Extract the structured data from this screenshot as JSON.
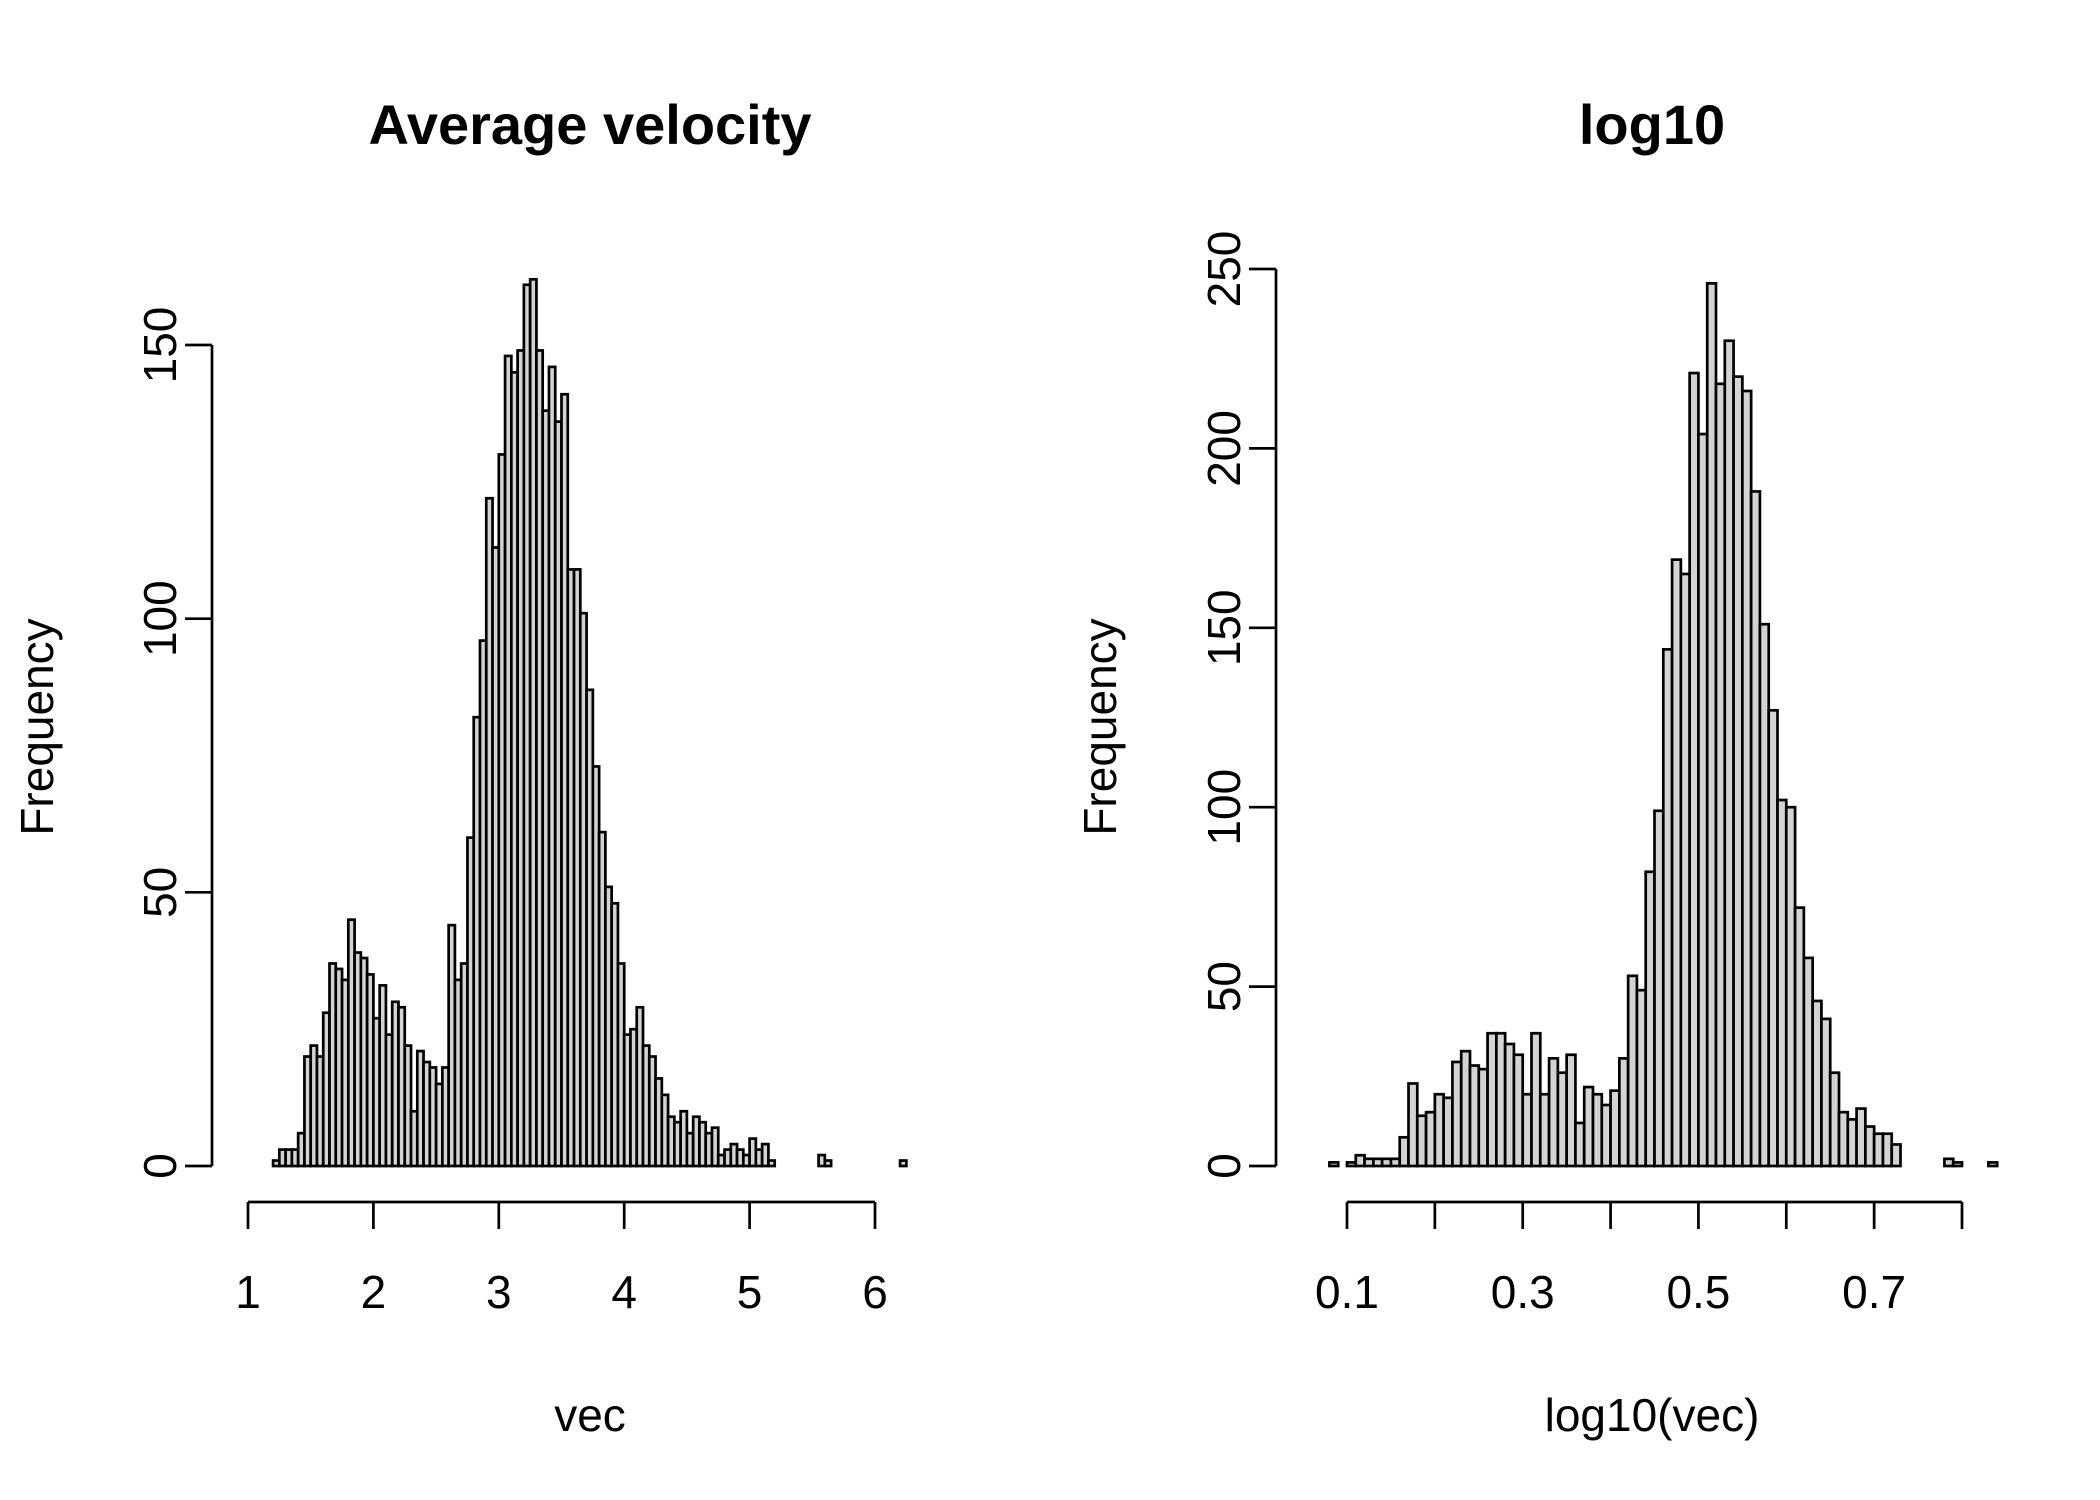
{
  "chart_data": [
    {
      "type": "bar",
      "title": "Average velocity",
      "xlabel": "vec",
      "ylabel": "Frequency",
      "xlim": [
        1,
        6
      ],
      "ylim": [
        0,
        150
      ],
      "x_ticks": [
        1,
        2,
        3,
        4,
        5,
        6
      ],
      "x_tick_labels": [
        "1",
        "2",
        "3",
        "4",
        "5",
        "6"
      ],
      "y_ticks": [
        0,
        50,
        100,
        150
      ],
      "y_tick_labels": [
        "0",
        "50",
        "100",
        "150"
      ],
      "bin_start": 1.2,
      "bin_width": 0.05,
      "values": [
        1,
        3,
        3,
        3,
        6,
        20,
        22,
        20,
        28,
        37,
        36,
        34,
        45,
        39,
        38,
        35,
        27,
        33,
        24,
        30,
        29,
        22,
        10,
        21,
        19,
        18,
        15,
        18,
        44,
        34,
        37,
        60,
        82,
        96,
        122,
        113,
        130,
        148,
        145,
        149,
        161,
        162,
        149,
        138,
        146,
        136,
        141,
        109,
        109,
        101,
        87,
        73,
        61,
        51,
        48,
        37,
        24,
        25,
        29,
        22,
        20,
        16,
        13,
        9,
        8,
        10,
        6,
        9,
        8,
        6,
        7,
        2,
        3,
        4,
        3,
        2,
        5,
        3,
        4,
        1,
        0,
        0,
        0,
        0,
        0,
        0,
        0,
        2,
        1,
        0,
        0,
        0,
        0,
        0,
        0,
        0,
        0,
        0,
        0,
        0,
        1
      ],
      "bar_color": "#d3d3d3",
      "grid": false
    },
    {
      "type": "bar",
      "title": "log10",
      "xlabel": "log10(vec)",
      "ylabel": "Frequency",
      "xlim": [
        0.1,
        0.8
      ],
      "ylim": [
        0,
        250
      ],
      "x_ticks": [
        0.1,
        0.2,
        0.3,
        0.4,
        0.5,
        0.6,
        0.7,
        0.8
      ],
      "x_tick_labels": [
        "0.1",
        "",
        "0.3",
        "",
        "0.5",
        "",
        "0.7",
        ""
      ],
      "y_ticks": [
        0,
        50,
        100,
        150,
        200,
        250
      ],
      "y_tick_labels": [
        "0",
        "50",
        "100",
        "150",
        "200",
        "250"
      ],
      "bin_start": 0.08,
      "bin_width": 0.01,
      "values": [
        1,
        0,
        1,
        3,
        2,
        2,
        2,
        2,
        8,
        23,
        14,
        15,
        20,
        19,
        29,
        32,
        28,
        27,
        37,
        37,
        34,
        31,
        20,
        37,
        20,
        30,
        26,
        31,
        12,
        22,
        20,
        17,
        21,
        30,
        53,
        49,
        82,
        99,
        144,
        169,
        165,
        221,
        204,
        246,
        218,
        230,
        220,
        216,
        188,
        151,
        127,
        102,
        100,
        72,
        58,
        46,
        41,
        26,
        15,
        13,
        16,
        11,
        9,
        9,
        6,
        0,
        0,
        0,
        0,
        0,
        2,
        1,
        0,
        0,
        0,
        1
      ],
      "bar_color": "#d3d3d3",
      "grid": false
    }
  ]
}
